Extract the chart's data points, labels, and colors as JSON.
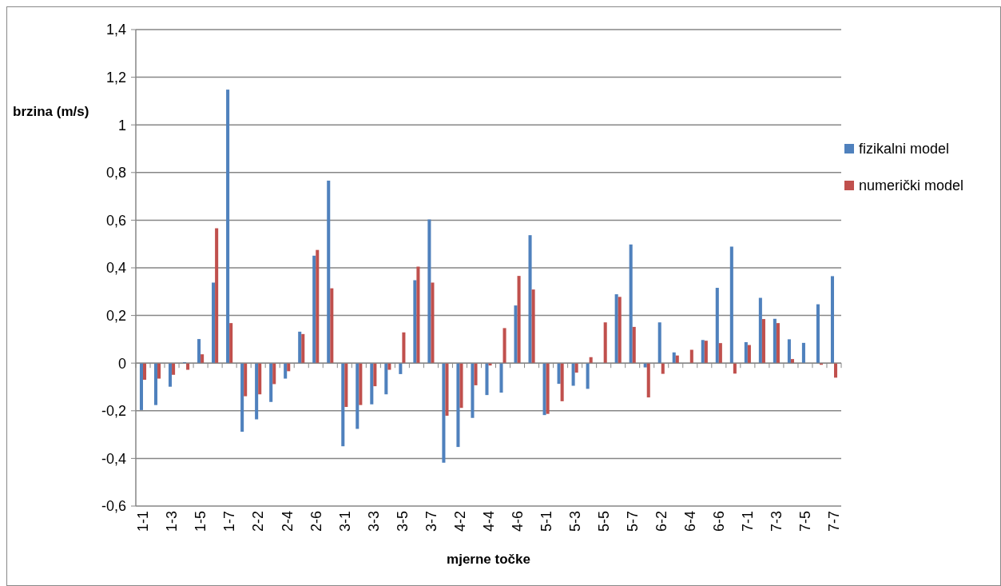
{
  "chart_data": {
    "type": "bar",
    "xlabel": "mjerne točke",
    "ylabel": "brzina (m/s)",
    "categories": [
      "1-1",
      null,
      "1-3",
      null,
      "1-5",
      null,
      "1-7",
      null,
      "2-2",
      null,
      "2-4",
      null,
      "2-6",
      null,
      "3-1",
      null,
      "3-3",
      null,
      "3-5",
      null,
      "3-7",
      null,
      "4-2",
      null,
      "4-4",
      null,
      "4-6",
      null,
      "5-1",
      null,
      "5-3",
      null,
      "5-5",
      null,
      "5-7",
      null,
      "6-2",
      null,
      "6-4",
      null,
      "6-6",
      null,
      "7-1",
      null,
      "7-3",
      null,
      "7-5",
      null,
      "7-7"
    ],
    "series": [
      {
        "name": "fizikalni model",
        "color": "#4f81bd",
        "values": [
          -0.197,
          -0.176,
          -0.099,
          0.004,
          0.101,
          0.338,
          1.148,
          -0.288,
          -0.236,
          -0.163,
          -0.065,
          0.132,
          0.451,
          0.766,
          -0.349,
          -0.276,
          -0.173,
          -0.131,
          -0.046,
          0.348,
          0.603,
          -0.418,
          -0.352,
          -0.23,
          -0.134,
          -0.124,
          0.242,
          0.537,
          -0.218,
          -0.087,
          -0.095,
          -0.108,
          0,
          0.289,
          0.498,
          -0.018,
          0.171,
          0.045,
          0,
          0.097,
          0.316,
          0.489,
          0.088,
          0.274,
          0.186,
          0.1,
          0.085,
          0.247,
          0.365
        ]
      },
      {
        "name": "numerički model",
        "color": "#c0504d",
        "values": [
          -0.07,
          -0.065,
          -0.049,
          -0.028,
          0.037,
          0.566,
          0.168,
          -0.139,
          -0.131,
          -0.088,
          -0.034,
          0.122,
          0.475,
          0.314,
          -0.184,
          -0.176,
          -0.097,
          -0.028,
          0.129,
          0.405,
          0.338,
          -0.221,
          -0.188,
          -0.093,
          -0.01,
          0.147,
          0.366,
          0.309,
          -0.213,
          -0.16,
          -0.04,
          0.025,
          0.171,
          0.278,
          0.152,
          -0.144,
          -0.045,
          0.032,
          0.056,
          0.094,
          0.084,
          -0.044,
          0.076,
          0.185,
          0.168,
          0.017,
          0,
          -0.007,
          -0.061
        ]
      }
    ],
    "ylim": [
      -0.6,
      1.4
    ],
    "yticks": [
      {
        "value": -0.6,
        "label": "-0,6"
      },
      {
        "value": -0.4,
        "label": "-0,4"
      },
      {
        "value": -0.2,
        "label": "-0,2"
      },
      0,
      {
        "value": 0.2,
        "label": "0,2"
      },
      {
        "value": 0.4,
        "label": "0,4"
      },
      {
        "value": 0.6,
        "label": "0,6"
      },
      {
        "value": 0.8,
        "label": "0,8"
      },
      1,
      {
        "value": 1.2,
        "label": "1,2"
      },
      {
        "value": 1.4,
        "label": "1,4"
      }
    ],
    "grid": "y",
    "legend": "right"
  }
}
